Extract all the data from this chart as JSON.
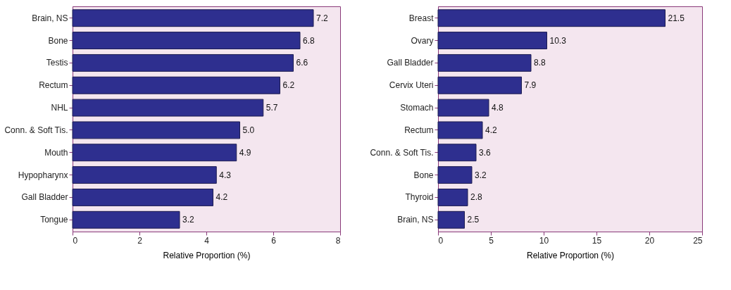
{
  "chart_data": [
    {
      "type": "bar",
      "orientation": "horizontal",
      "xlabel": "Relative Proportion (%)",
      "categories": [
        "Brain, NS",
        "Bone",
        "Testis",
        "Rectum",
        "NHL",
        "Conn. & Soft Tis.",
        "Mouth",
        "Hypopharynx",
        "Gall Bladder",
        "Tongue"
      ],
      "values": [
        7.2,
        6.8,
        6.6,
        6.2,
        5.7,
        5.0,
        4.9,
        4.3,
        4.2,
        3.2
      ],
      "color": "#2e2f8f",
      "xlim": [
        0,
        8
      ],
      "xticks": [
        0,
        2,
        4,
        6,
        8
      ],
      "value_labels": [
        "7.2",
        "6.8",
        "6.6",
        "6.2",
        "5.7",
        "5.0",
        "4.9",
        "4.3",
        "4.2",
        "3.2"
      ],
      "grid": false
    },
    {
      "type": "bar",
      "orientation": "horizontal",
      "xlabel": "Relative Proportion (%)",
      "categories": [
        "Breast",
        "Ovary",
        "Gall Bladder",
        "Cervix Uteri",
        "Stomach",
        "Rectum",
        "Conn. & Soft Tis.",
        "Bone",
        "Thyroid",
        "Brain, NS"
      ],
      "values": [
        21.5,
        10.3,
        8.8,
        7.9,
        4.8,
        4.2,
        3.6,
        3.2,
        2.8,
        2.5
      ],
      "color": "#2e2f8f",
      "xlim": [
        0,
        25
      ],
      "xticks": [
        0,
        5,
        10,
        15,
        20,
        25
      ],
      "value_labels": [
        "21.5",
        "10.3",
        "8.8",
        "7.9",
        "4.8",
        "4.2",
        "3.6",
        "3.2",
        "2.8",
        "2.5"
      ],
      "grid": false
    }
  ]
}
